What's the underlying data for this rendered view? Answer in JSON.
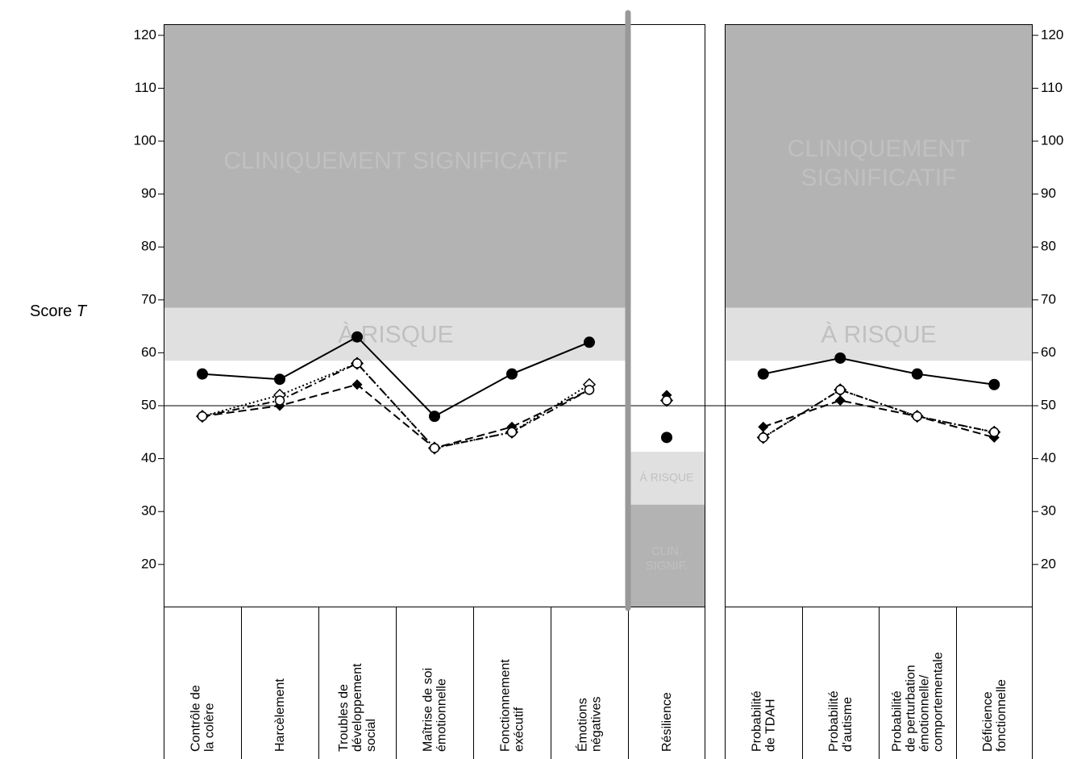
{
  "chart_data": {
    "type": "line",
    "y_axis_label": "Score",
    "y_axis_label_italic": "T",
    "ylim": [
      12,
      122
    ],
    "yticks": [
      20,
      30,
      40,
      50,
      60,
      70,
      80,
      90,
      100,
      110,
      120
    ],
    "reference_line": 50,
    "colors": {
      "clinical": "#b3b3b3",
      "at_risk": "#e0e0e0",
      "zone_text": "#c0c0c0",
      "divider": "#999999",
      "ink": "#000000"
    },
    "panels": [
      {
        "id": "left",
        "categories": [
          [
            "Contrôle de",
            "la colère"
          ],
          [
            "Harcèlement"
          ],
          [
            "Troubles de",
            "développement",
            "social"
          ],
          [
            "Maîtrise de soi",
            "émotionnelle"
          ],
          [
            "Fonctionnement",
            "exécutif"
          ],
          [
            "Émotions",
            "négatives"
          ]
        ],
        "zones": {
          "clinical_label": "CLINIQUEMENT SIGNIFICATIF",
          "at_risk_label": "À RISQUE",
          "clinical_from": 68.5,
          "at_risk_from": 58.5
        },
        "series": [
          {
            "marker": "filled-circle",
            "line": "solid",
            "values": [
              56,
              55,
              63,
              48,
              56,
              62
            ]
          },
          {
            "marker": "filled-diamond",
            "line": "dashed",
            "values": [
              48,
              50,
              54,
              42,
              46,
              53
            ]
          },
          {
            "marker": "open-diamond",
            "line": "dotted",
            "values": [
              48,
              52,
              58,
              42,
              45,
              54
            ]
          },
          {
            "marker": "open-circle",
            "line": "dash-dot",
            "values": [
              48,
              51,
              58,
              42,
              45,
              53
            ]
          }
        ]
      },
      {
        "id": "resilience",
        "categories": [
          [
            "Résilience"
          ]
        ],
        "zones": {
          "at_risk_label": "À RISQUE",
          "clinical_label": [
            "CLIN.",
            "SIGNIF."
          ],
          "at_risk_from": 41.3,
          "clinical_from": 31.3
        },
        "series": [
          {
            "marker": "filled-circle",
            "values": [
              44
            ]
          },
          {
            "marker": "filled-diamond",
            "values": [
              52
            ]
          },
          {
            "marker": "open-diamond",
            "values": [
              51
            ]
          },
          {
            "marker": "open-circle",
            "values": [
              51
            ]
          }
        ]
      },
      {
        "id": "right",
        "categories": [
          [
            "Probabilité",
            "de TDAH"
          ],
          [
            "Probabilité",
            "d'autisme"
          ],
          [
            "Probabilité",
            "de perturbation",
            "émotionnelle/",
            "comportementale"
          ],
          [
            "Déficience",
            "fonctionnelle"
          ]
        ],
        "zones": {
          "clinical_label": [
            "CLINIQUEMENT",
            "SIGNIFICATIF"
          ],
          "at_risk_label": "À RISQUE",
          "clinical_from": 68.5,
          "at_risk_from": 58.5
        },
        "series": [
          {
            "marker": "filled-circle",
            "line": "solid",
            "values": [
              56,
              59,
              56,
              54
            ]
          },
          {
            "marker": "filled-diamond",
            "line": "dashed",
            "values": [
              46,
              51,
              48,
              44
            ]
          },
          {
            "marker": "open-diamond",
            "line": "dotted",
            "values": [
              44,
              53,
              48,
              45
            ]
          },
          {
            "marker": "open-circle",
            "line": "dash-dot",
            "values": [
              44,
              53,
              48,
              45
            ]
          }
        ]
      }
    ]
  }
}
